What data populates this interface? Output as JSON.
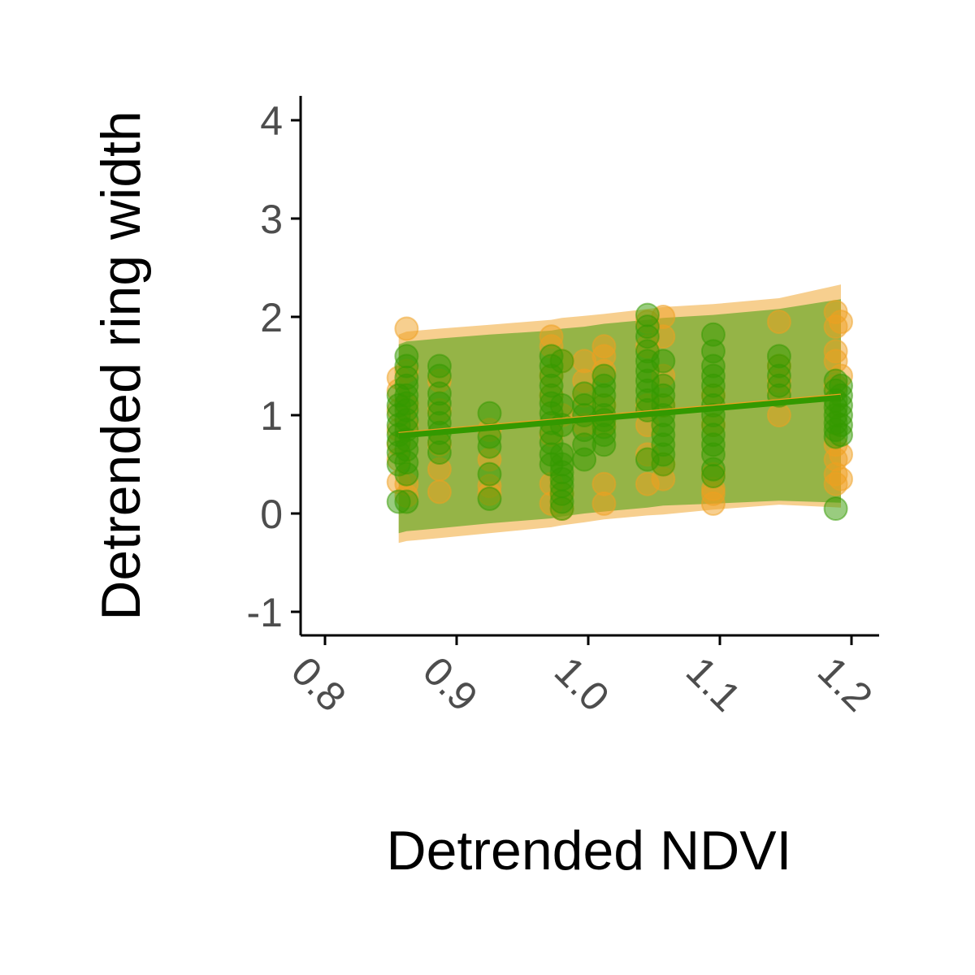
{
  "chart_data": {
    "type": "scatter",
    "title": "",
    "xlabel": "Detrended NDVI",
    "ylabel": "Detrended ring width",
    "xlim": [
      0.78,
      1.22
    ],
    "ylim": [
      -1.25,
      4.25
    ],
    "x_ticks": [
      0.8,
      0.9,
      1.0,
      1.1,
      1.2
    ],
    "x_tick_labels": [
      "0.8",
      "0.9",
      "1.0",
      "1.1",
      "1.2"
    ],
    "y_ticks": [
      -1,
      0,
      1,
      2,
      3,
      4
    ],
    "y_tick_labels": [
      "-1",
      "0",
      "1",
      "2",
      "3",
      "4"
    ],
    "grid": false,
    "legend": "none",
    "colors": {
      "orange": "#F0A020",
      "green": "#339900",
      "axis": "#000000",
      "tick_text": "#4d4d4d"
    },
    "series": [
      {
        "name": "orange",
        "color": "#F0A020",
        "points": [
          [
            0.856,
            1.38
          ],
          [
            0.856,
            1.25
          ],
          [
            0.856,
            1.05
          ],
          [
            0.856,
            0.85
          ],
          [
            0.856,
            0.7
          ],
          [
            0.856,
            0.55
          ],
          [
            0.856,
            0.32
          ],
          [
            0.862,
            1.88
          ],
          [
            0.862,
            1.45
          ],
          [
            0.862,
            1.1
          ],
          [
            0.862,
            0.9
          ],
          [
            0.862,
            0.3
          ],
          [
            0.862,
            0.18
          ],
          [
            0.887,
            1.35
          ],
          [
            0.887,
            1.05
          ],
          [
            0.887,
            0.7
          ],
          [
            0.887,
            0.45
          ],
          [
            0.887,
            0.22
          ],
          [
            0.925,
            0.85
          ],
          [
            0.925,
            0.55
          ],
          [
            0.925,
            0.28
          ],
          [
            0.925,
            0.2
          ],
          [
            0.972,
            1.8
          ],
          [
            0.972,
            1.7
          ],
          [
            0.972,
            1.4
          ],
          [
            0.972,
            1.2
          ],
          [
            0.972,
            0.8
          ],
          [
            0.972,
            0.3
          ],
          [
            0.972,
            0.1
          ],
          [
            0.98,
            1.55
          ],
          [
            0.98,
            1.0
          ],
          [
            0.98,
            0.2
          ],
          [
            0.98,
            0.05
          ],
          [
            0.997,
            1.55
          ],
          [
            0.997,
            1.35
          ],
          [
            0.997,
            1.2
          ],
          [
            0.997,
            0.9
          ],
          [
            1.012,
            1.7
          ],
          [
            1.012,
            1.6
          ],
          [
            1.012,
            1.45
          ],
          [
            1.012,
            1.1
          ],
          [
            1.012,
            0.9
          ],
          [
            1.012,
            0.3
          ],
          [
            1.012,
            0.1
          ],
          [
            1.045,
            1.95
          ],
          [
            1.045,
            1.7
          ],
          [
            1.045,
            1.1
          ],
          [
            1.045,
            0.9
          ],
          [
            1.045,
            0.6
          ],
          [
            1.045,
            0.3
          ],
          [
            1.057,
            2.0
          ],
          [
            1.057,
            1.8
          ],
          [
            1.057,
            1.4
          ],
          [
            1.057,
            1.1
          ],
          [
            1.057,
            0.5
          ],
          [
            1.057,
            0.35
          ],
          [
            1.095,
            1.2
          ],
          [
            1.095,
            0.9
          ],
          [
            1.095,
            0.4
          ],
          [
            1.095,
            0.25
          ],
          [
            1.095,
            0.1
          ],
          [
            1.095,
            0.2
          ],
          [
            1.145,
            1.95
          ],
          [
            1.145,
            1.5
          ],
          [
            1.145,
            1.35
          ],
          [
            1.145,
            1.25
          ],
          [
            1.145,
            1.0
          ],
          [
            1.188,
            2.05
          ],
          [
            1.188,
            1.9
          ],
          [
            1.188,
            1.65
          ],
          [
            1.188,
            1.55
          ],
          [
            1.188,
            1.3
          ],
          [
            1.188,
            0.7
          ],
          [
            1.188,
            0.55
          ],
          [
            1.188,
            0.4
          ],
          [
            1.188,
            0.3
          ],
          [
            1.192,
            1.95
          ],
          [
            1.192,
            1.4
          ],
          [
            1.192,
            0.6
          ],
          [
            1.192,
            0.35
          ]
        ]
      },
      {
        "name": "green",
        "color": "#339900",
        "points": [
          [
            0.856,
            1.2
          ],
          [
            0.856,
            1.1
          ],
          [
            0.856,
            1.0
          ],
          [
            0.856,
            0.9
          ],
          [
            0.856,
            0.8
          ],
          [
            0.856,
            0.72
          ],
          [
            0.856,
            0.62
          ],
          [
            0.856,
            0.5
          ],
          [
            0.856,
            0.12
          ],
          [
            0.862,
            1.6
          ],
          [
            0.862,
            1.5
          ],
          [
            0.862,
            1.38
          ],
          [
            0.862,
            1.3
          ],
          [
            0.862,
            1.2
          ],
          [
            0.862,
            1.12
          ],
          [
            0.862,
            1.05
          ],
          [
            0.862,
            0.95
          ],
          [
            0.862,
            0.85
          ],
          [
            0.862,
            0.75
          ],
          [
            0.862,
            0.65
          ],
          [
            0.862,
            0.52
          ],
          [
            0.862,
            0.4
          ],
          [
            0.862,
            0.12
          ],
          [
            0.887,
            1.5
          ],
          [
            0.887,
            1.4
          ],
          [
            0.887,
            1.22
          ],
          [
            0.887,
            1.12
          ],
          [
            0.887,
            1.02
          ],
          [
            0.887,
            0.92
          ],
          [
            0.887,
            0.82
          ],
          [
            0.887,
            0.72
          ],
          [
            0.887,
            0.62
          ],
          [
            0.925,
            1.02
          ],
          [
            0.925,
            0.78
          ],
          [
            0.925,
            0.68
          ],
          [
            0.925,
            0.4
          ],
          [
            0.925,
            0.15
          ],
          [
            0.972,
            1.6
          ],
          [
            0.972,
            1.5
          ],
          [
            0.972,
            1.4
          ],
          [
            0.972,
            1.3
          ],
          [
            0.972,
            1.2
          ],
          [
            0.972,
            1.12
          ],
          [
            0.972,
            1.02
          ],
          [
            0.972,
            0.92
          ],
          [
            0.972,
            0.82
          ],
          [
            0.972,
            0.72
          ],
          [
            0.972,
            0.6
          ],
          [
            0.972,
            0.5
          ],
          [
            0.98,
            1.55
          ],
          [
            0.98,
            1.1
          ],
          [
            0.98,
            0.9
          ],
          [
            0.98,
            0.6
          ],
          [
            0.98,
            0.5
          ],
          [
            0.98,
            0.42
          ],
          [
            0.98,
            0.35
          ],
          [
            0.98,
            0.28
          ],
          [
            0.98,
            0.2
          ],
          [
            0.98,
            0.12
          ],
          [
            0.98,
            0.05
          ],
          [
            0.997,
            1.22
          ],
          [
            0.997,
            1.1
          ],
          [
            0.997,
            1.0
          ],
          [
            0.997,
            0.85
          ],
          [
            0.997,
            0.7
          ],
          [
            0.997,
            0.55
          ],
          [
            1.012,
            1.4
          ],
          [
            1.012,
            1.3
          ],
          [
            1.012,
            1.2
          ],
          [
            1.012,
            1.1
          ],
          [
            1.012,
            1.0
          ],
          [
            1.012,
            0.95
          ],
          [
            1.012,
            0.88
          ],
          [
            1.012,
            0.8
          ],
          [
            1.012,
            0.7
          ],
          [
            1.045,
            2.02
          ],
          [
            1.045,
            1.9
          ],
          [
            1.045,
            1.8
          ],
          [
            1.045,
            1.65
          ],
          [
            1.045,
            1.55
          ],
          [
            1.045,
            1.45
          ],
          [
            1.045,
            1.35
          ],
          [
            1.045,
            1.25
          ],
          [
            1.045,
            1.15
          ],
          [
            1.045,
            1.05
          ],
          [
            1.045,
            0.55
          ],
          [
            1.057,
            1.55
          ],
          [
            1.057,
            1.3
          ],
          [
            1.057,
            1.2
          ],
          [
            1.057,
            1.1
          ],
          [
            1.057,
            1.0
          ],
          [
            1.057,
            0.9
          ],
          [
            1.057,
            0.8
          ],
          [
            1.057,
            0.7
          ],
          [
            1.057,
            0.6
          ],
          [
            1.057,
            0.5
          ],
          [
            1.095,
            1.82
          ],
          [
            1.095,
            1.65
          ],
          [
            1.095,
            1.5
          ],
          [
            1.095,
            1.4
          ],
          [
            1.095,
            1.3
          ],
          [
            1.095,
            1.2
          ],
          [
            1.095,
            1.1
          ],
          [
            1.095,
            1.0
          ],
          [
            1.095,
            0.9
          ],
          [
            1.095,
            0.8
          ],
          [
            1.095,
            0.7
          ],
          [
            1.095,
            0.6
          ],
          [
            1.095,
            0.45
          ],
          [
            1.095,
            0.38
          ],
          [
            1.145,
            1.6
          ],
          [
            1.145,
            1.5
          ],
          [
            1.145,
            1.4
          ],
          [
            1.145,
            1.3
          ],
          [
            1.145,
            1.2
          ],
          [
            1.188,
            1.35
          ],
          [
            1.188,
            1.25
          ],
          [
            1.188,
            1.15
          ],
          [
            1.188,
            1.08
          ],
          [
            1.188,
            1.0
          ],
          [
            1.188,
            0.92
          ],
          [
            1.188,
            0.85
          ],
          [
            1.188,
            0.78
          ],
          [
            1.188,
            0.05
          ],
          [
            1.192,
            1.3
          ],
          [
            1.192,
            1.2
          ],
          [
            1.192,
            1.1
          ],
          [
            1.192,
            1.0
          ],
          [
            1.192,
            0.9
          ],
          [
            1.192,
            0.8
          ]
        ]
      }
    ],
    "ribbons": [
      {
        "name": "orange-interval",
        "color": "#F0A020",
        "x": [
          0.856,
          0.862,
          0.887,
          0.925,
          0.972,
          0.98,
          0.997,
          1.012,
          1.045,
          1.057,
          1.095,
          1.145,
          1.192
        ],
        "upper": [
          1.82,
          1.85,
          1.88,
          1.92,
          1.97,
          1.99,
          2.01,
          2.03,
          2.08,
          2.1,
          2.13,
          2.19,
          2.33
        ],
        "lower": [
          -0.3,
          -0.28,
          -0.25,
          -0.2,
          -0.14,
          -0.12,
          -0.09,
          -0.06,
          -0.02,
          -0.01,
          0.04,
          0.09,
          0.06
        ]
      },
      {
        "name": "green-interval",
        "color": "#339900",
        "x": [
          0.856,
          0.862,
          0.887,
          0.925,
          0.972,
          0.98,
          0.997,
          1.012,
          1.045,
          1.057,
          1.095,
          1.145,
          1.192
        ],
        "upper": [
          1.72,
          1.75,
          1.78,
          1.82,
          1.86,
          1.88,
          1.9,
          1.93,
          1.97,
          1.99,
          2.02,
          2.08,
          2.18
        ],
        "lower": [
          -0.2,
          -0.18,
          -0.15,
          -0.1,
          -0.05,
          -0.03,
          0.0,
          0.02,
          0.06,
          0.08,
          0.1,
          0.13,
          0.11
        ]
      }
    ],
    "fit_lines": [
      {
        "name": "orange-fit",
        "color": "#F0A020",
        "x": [
          0.856,
          1.192
        ],
        "y": [
          0.8,
          1.19
        ]
      },
      {
        "name": "green-fit",
        "color": "#339900",
        "x": [
          0.856,
          1.192
        ],
        "y": [
          0.79,
          1.18
        ]
      }
    ]
  }
}
